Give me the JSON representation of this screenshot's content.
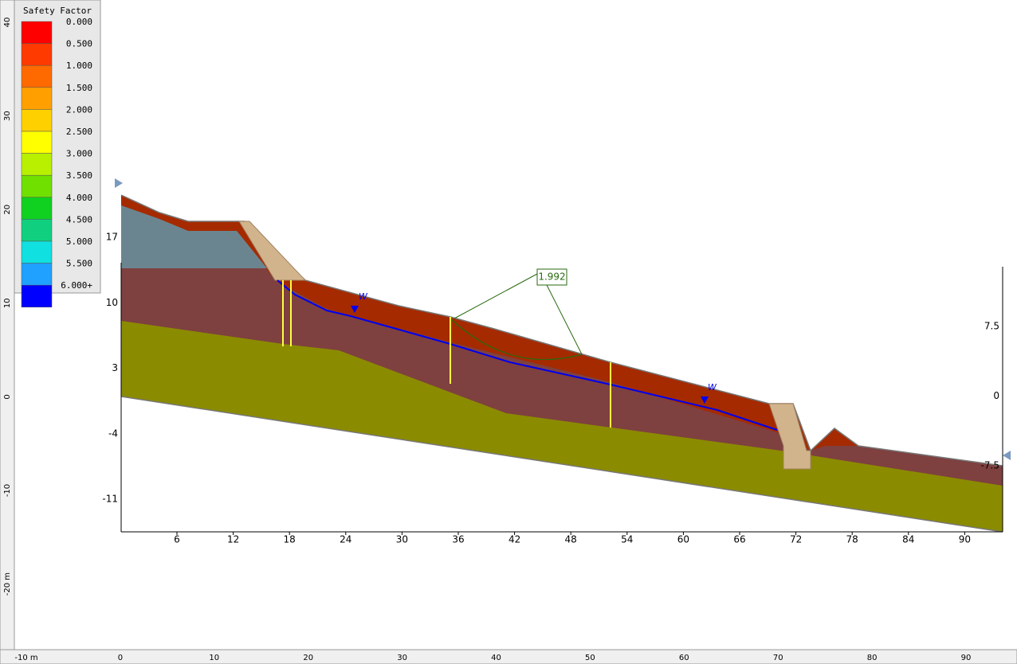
{
  "legend": {
    "title": "Safety Factor",
    "labels": [
      "0.000",
      "0.500",
      "1.000",
      "1.500",
      "2.000",
      "2.500",
      "3.000",
      "3.500",
      "4.000",
      "4.500",
      "5.000",
      "5.500",
      "6.000+"
    ]
  },
  "ruler": {
    "left": [
      "40",
      "30",
      "20",
      "10",
      "0",
      "-10",
      "-20 m"
    ],
    "bottom": [
      "-10 m",
      "0",
      "10",
      "20",
      "30",
      "40",
      "50",
      "60",
      "70",
      "80",
      "90"
    ]
  },
  "axes": {
    "left": [
      "17",
      "10",
      "3",
      "-4",
      "-11"
    ],
    "bottom": [
      "6",
      "12",
      "18",
      "24",
      "30",
      "36",
      "42",
      "48",
      "54",
      "60",
      "66",
      "72",
      "78",
      "84",
      "90"
    ],
    "right": [
      "7.5",
      "0",
      "-7.5"
    ]
  },
  "annotations": {
    "safety_factor": "1.992",
    "water_table": [
      "W",
      "W"
    ]
  }
}
